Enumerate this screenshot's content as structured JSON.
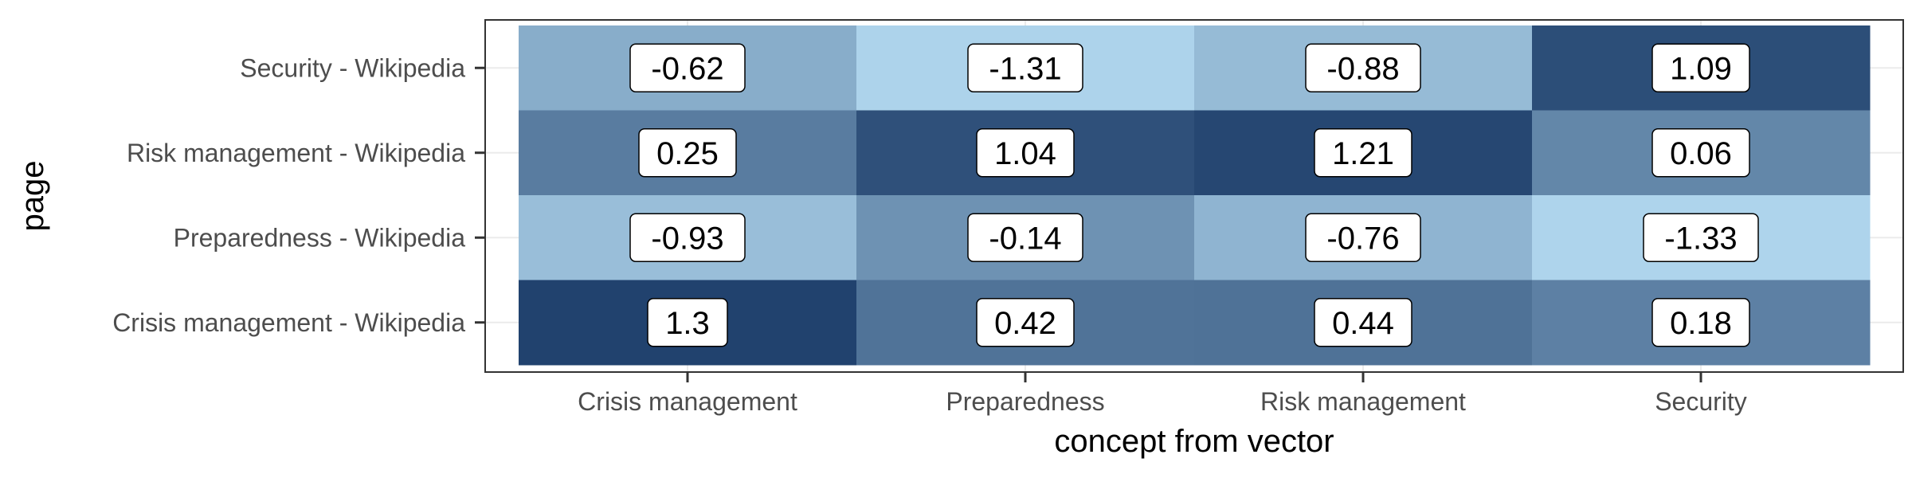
{
  "chart_data": {
    "type": "heatmap",
    "title": "",
    "xlabel": "concept from vector",
    "ylabel": "page",
    "x_categories": [
      "Crisis management",
      "Preparedness",
      "Risk management",
      "Security"
    ],
    "y_categories": [
      "Security - Wikipedia",
      "Risk management - Wikipedia",
      "Preparedness - Wikipedia",
      "Crisis management - Wikipedia"
    ],
    "values": [
      [
        -0.62,
        -1.31,
        -0.88,
        1.09
      ],
      [
        0.25,
        1.04,
        1.21,
        0.06
      ],
      [
        -0.93,
        -0.14,
        -0.76,
        -1.33
      ],
      [
        1.3,
        0.42,
        0.44,
        0.18
      ]
    ],
    "labels": [
      [
        "-0.62",
        "-1.31",
        "-0.88",
        "1.09"
      ],
      [
        "0.25",
        "1.04",
        "1.21",
        "0.06"
      ],
      [
        "-0.93",
        "-0.14",
        "-0.76",
        "-1.33"
      ],
      [
        "1.3",
        "0.42",
        "0.44",
        "0.18"
      ]
    ],
    "color_scale": {
      "low": "#aed4ec",
      "high": "#21426e",
      "range": [
        -1.33,
        1.3
      ]
    },
    "grid": true,
    "legend": "none"
  }
}
